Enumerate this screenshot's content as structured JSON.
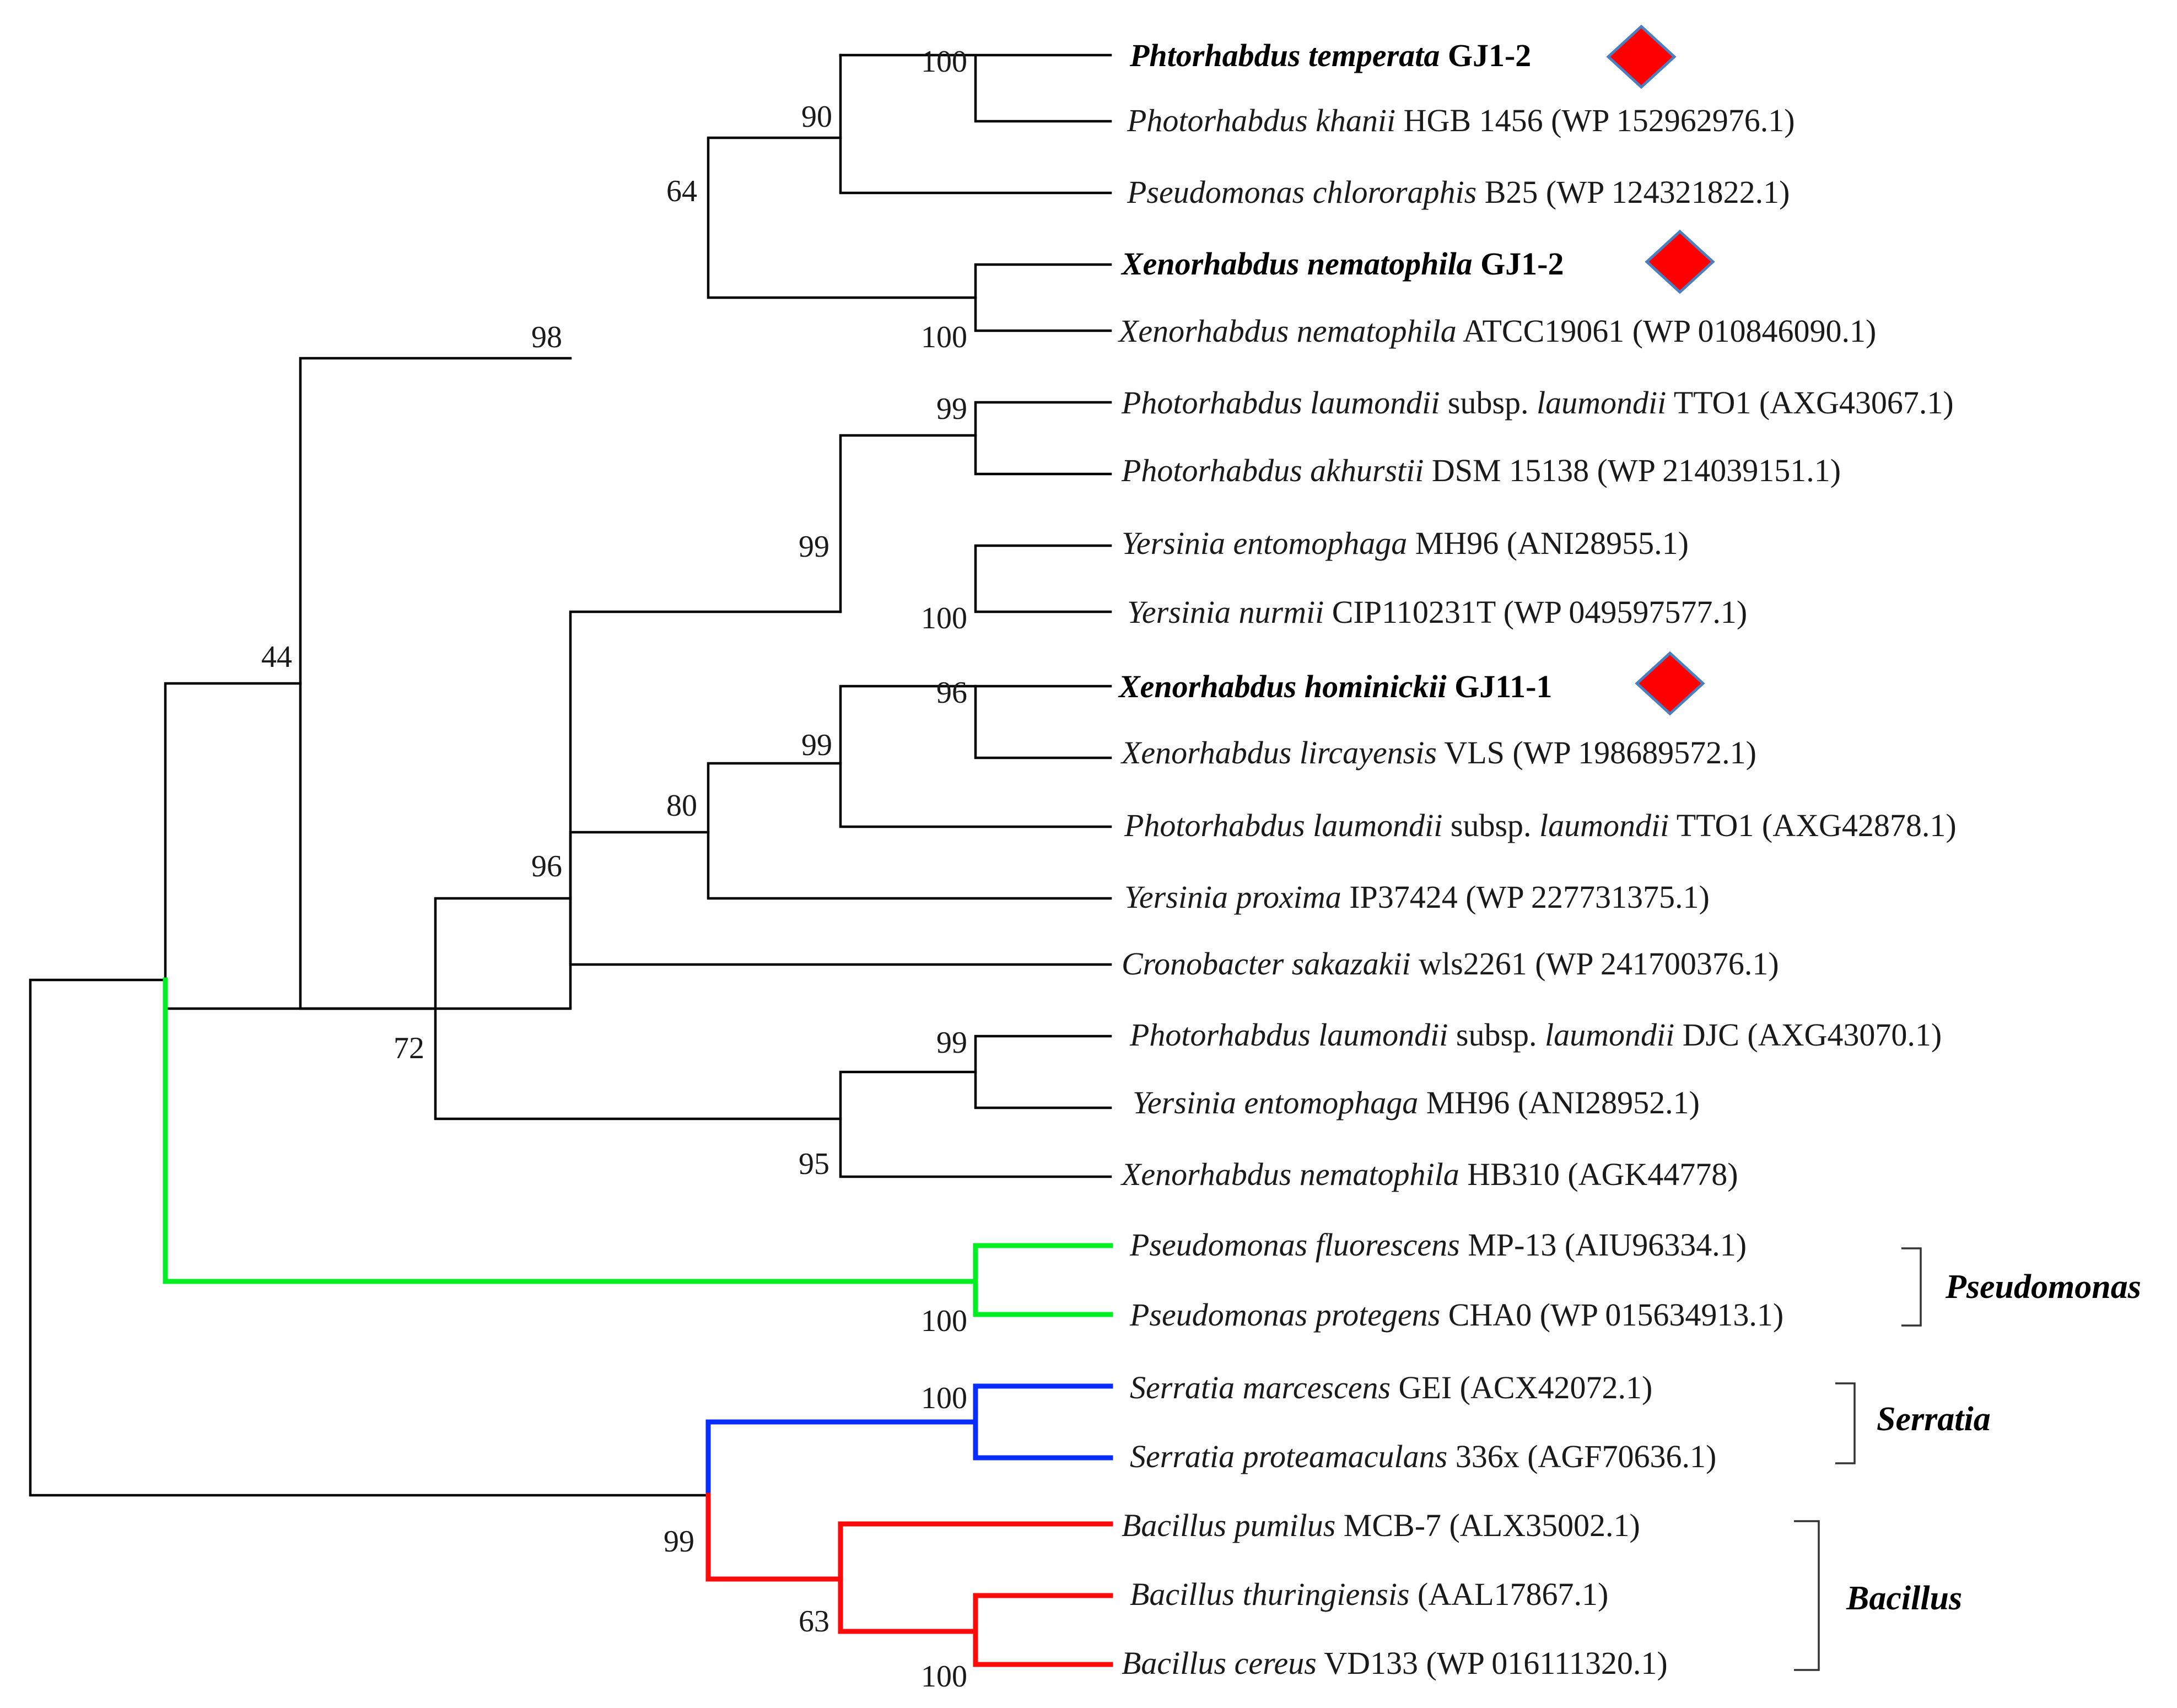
{
  "figure": {
    "type": "phylogenetic-tree",
    "colors": {
      "branch": "#000000",
      "pseudomonas": "#00ee22",
      "serratia": "#0a2dff",
      "bacillus": "#ff0a0a",
      "marker_fill": "#ff0000",
      "marker_stroke": "#4a7fc0"
    }
  },
  "leaves": [
    {
      "italic": "Phtorhabdus temperata",
      "rest": " GJ1-2",
      "highlight": true
    },
    {
      "italic": "Photorhabdus khanii",
      "rest": " HGB 1456 (WP 152962976.1)",
      "highlight": false
    },
    {
      "italic": "Pseudomonas chlororaphis",
      "rest": " B25 (WP 124321822.1)",
      "highlight": false
    },
    {
      "italic": "Xenorhabdus nematophila",
      "rest": " GJ1-2",
      "highlight": true
    },
    {
      "italic": "Xenorhabdus nematophila",
      "rest": " ATCC19061 (WP 010846090.1)",
      "highlight": false
    },
    {
      "italic": "Photorhabdus laumondii",
      "mid": " subsp. ",
      "italic2": "laumondii",
      "rest": " TTO1 (AXG43067.1)",
      "highlight": false
    },
    {
      "italic": "Photorhabdus akhurstii",
      "rest": " DSM 15138 (WP 214039151.1)",
      "highlight": false
    },
    {
      "italic": "Yersinia entomophaga",
      "rest": " MH96 (ANI28955.1)",
      "highlight": false
    },
    {
      "italic": "Yersinia nurmii",
      "rest": " CIP110231T (WP 049597577.1)",
      "highlight": false
    },
    {
      "italic": "Xenorhabdus hominickii",
      "rest": " GJ11-1",
      "highlight": true
    },
    {
      "italic": "Xenorhabdus lircayensis",
      "rest": " VLS (WP 198689572.1)",
      "highlight": false
    },
    {
      "italic": "Photorhabdus laumondii",
      "mid": " subsp. ",
      "italic2": "laumondii",
      "rest": " TTO1 (AXG42878.1)",
      "highlight": false
    },
    {
      "italic": "Yersinia proxima",
      "rest": " IP37424 (WP 227731375.1)",
      "highlight": false
    },
    {
      "italic": "Cronobacter sakazakii",
      "rest": " wls2261 (WP 241700376.1)",
      "highlight": false
    },
    {
      "italic": "Photorhabdus laumondii",
      "mid": " subsp. ",
      "italic2": "laumondii",
      "rest": " DJC (AXG43070.1)",
      "highlight": false
    },
    {
      "italic": "Yersinia entomophaga",
      "rest": " MH96 (ANI28952.1)",
      "highlight": false
    },
    {
      "italic": "Xenorhabdus nematophila",
      "rest": " HB310 (AGK44778)",
      "highlight": false
    },
    {
      "italic": "Pseudomonas fluorescens",
      "rest": " MP-13 (AIU96334.1)",
      "highlight": false
    },
    {
      "italic": "Pseudomonas protegens",
      "rest": " CHA0 (WP 015634913.1)",
      "highlight": false
    },
    {
      "italic": "Serratia marcescens",
      "rest": " GEI (ACX42072.1)",
      "highlight": false
    },
    {
      "italic": "Serratia proteamaculans",
      "rest": " 336x (AGF70636.1)",
      "highlight": false
    },
    {
      "italic": "Bacillus pumilus",
      "rest": " MCB-7 (ALX35002.1)",
      "highlight": false
    },
    {
      "italic": "Bacillus thuringiensis",
      "rest": " (AAL17867.1)",
      "highlight": false
    },
    {
      "italic": "Bacillus cereus",
      "rest": " VD133 (WP 016111320.1)",
      "highlight": false
    }
  ],
  "bootstrap": [
    "100",
    "90",
    "64",
    "100",
    "98",
    "99",
    "99",
    "100",
    "44",
    "96",
    "99",
    "80",
    "96",
    "72",
    "99",
    "95",
    "100",
    "100",
    "99",
    "63",
    "100"
  ],
  "groups": [
    "Pseudomonas",
    "Serratia",
    "Bacillus"
  ]
}
